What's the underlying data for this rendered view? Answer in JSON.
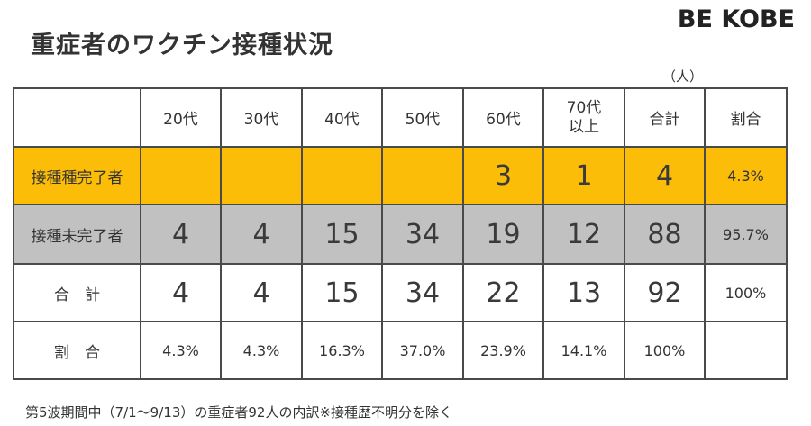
{
  "title": "重症者のワクチン接種状況",
  "brand": "BE KOBE",
  "unit_label": "（人）",
  "headers": {
    "c1": "20代",
    "c2": "30代",
    "c3": "40代",
    "c4": "50代",
    "c5": "60代",
    "c6_line1": "70代",
    "c6_line2": "以上",
    "c7": "合計",
    "c8": "割合"
  },
  "rows": {
    "vaccinated": {
      "label": "接種種完了者",
      "c1": "",
      "c2": "",
      "c3": "",
      "c4": "",
      "c5": "3",
      "c6": "1",
      "c7": "4",
      "c8": "4.3%"
    },
    "not_vaccinated": {
      "label": "接種未完了者",
      "c1": "4",
      "c2": "4",
      "c3": "15",
      "c4": "34",
      "c5": "19",
      "c6": "12",
      "c7": "88",
      "c8": "95.7%"
    },
    "total": {
      "label": "合　計",
      "c1": "4",
      "c2": "4",
      "c3": "15",
      "c4": "34",
      "c5": "22",
      "c6": "13",
      "c7": "92",
      "c8": "100%"
    },
    "ratio": {
      "label": "割　合",
      "c1": "4.3%",
      "c2": "4.3%",
      "c3": "16.3%",
      "c4": "37.0%",
      "c5": "23.9%",
      "c6": "14.1%",
      "c7": "100%",
      "c8": ""
    }
  },
  "footnote": "第5波期間中（7/1〜9/13）の重症者92人の内訳※接種歴不明分を除く",
  "colors": {
    "vaccinated_row": "#fbbd08",
    "not_vaccinated_row": "#c1c1c1",
    "border": "#4a4a4a"
  }
}
